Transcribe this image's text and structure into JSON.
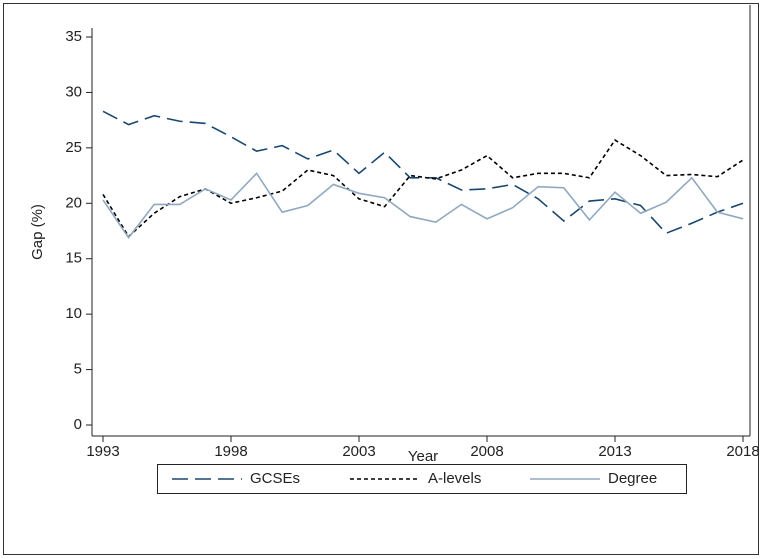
{
  "chart_data": {
    "type": "line",
    "x_label": "Year",
    "y_label": "Gap (%)",
    "x": [
      1993,
      1994,
      1995,
      1996,
      1997,
      1998,
      1999,
      2000,
      2001,
      2002,
      2003,
      2004,
      2005,
      2006,
      2007,
      2008,
      2009,
      2010,
      2011,
      2012,
      2013,
      2014,
      2015,
      2016,
      2017,
      2018
    ],
    "series": [
      {
        "name": "GCSEs",
        "color": "#1a476f",
        "dash": "long-dash",
        "values": [
          28.3,
          27.1,
          27.9,
          27.4,
          27.2,
          26.0,
          24.7,
          25.2,
          24.0,
          24.8,
          22.7,
          24.6,
          22.3,
          22.3,
          21.2,
          21.3,
          21.7,
          20.4,
          18.4,
          20.2,
          20.4,
          19.8,
          17.3,
          18.2,
          19.2,
          20.0
        ]
      },
      {
        "name": "A-levels",
        "color": "#000000",
        "dash": "short-dash",
        "values": [
          20.8,
          17.0,
          19.1,
          20.6,
          21.3,
          20.0,
          20.5,
          21.1,
          23.0,
          22.5,
          20.4,
          19.7,
          22.5,
          22.2,
          23.0,
          24.3,
          22.3,
          22.7,
          22.7,
          22.3,
          25.7,
          24.3,
          22.5,
          22.6,
          22.4,
          23.9
        ]
      },
      {
        "name": "Degree",
        "color": "#90a8c0",
        "dash": "solid",
        "values": [
          20.3,
          16.9,
          19.9,
          19.9,
          21.3,
          20.3,
          22.7,
          19.2,
          19.8,
          21.7,
          20.9,
          20.5,
          18.8,
          18.3,
          19.9,
          18.6,
          19.6,
          21.5,
          21.4,
          18.5,
          21.0,
          19.1,
          20.1,
          22.3,
          19.2,
          18.6
        ]
      }
    ],
    "xlim": [
      1993,
      2018
    ],
    "xticks": [
      1993,
      1998,
      2003,
      2008,
      2013,
      2018
    ],
    "ylim": [
      0,
      35
    ],
    "yticks": [
      0,
      5,
      10,
      15,
      20,
      25,
      30,
      35
    ],
    "grid": false,
    "legend": "bottom"
  }
}
